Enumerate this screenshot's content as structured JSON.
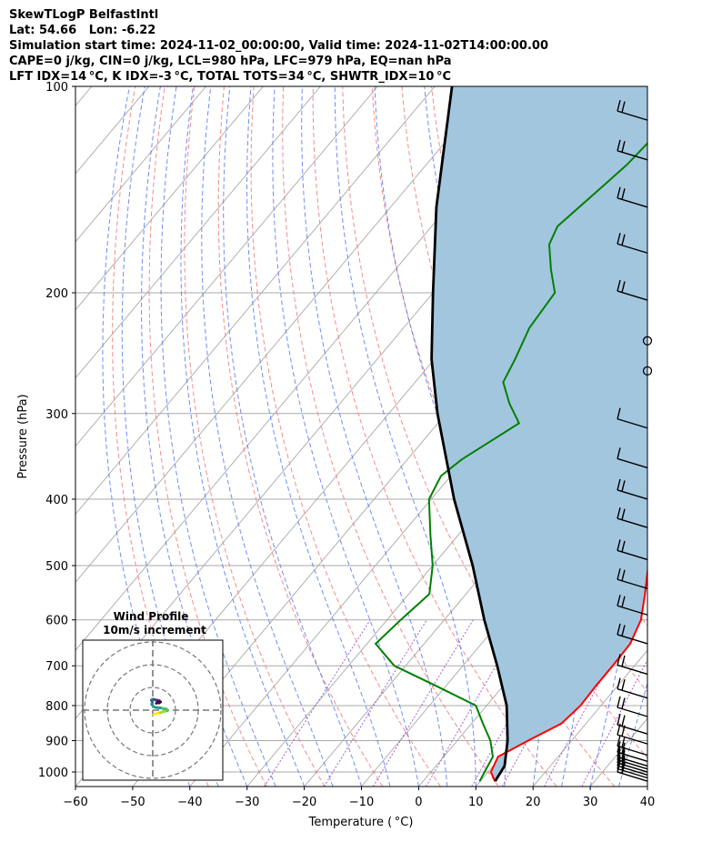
{
  "header": {
    "line1": "SkewTLogP BelfastIntl",
    "line2": "Lat: 54.66   Lon: -6.22",
    "line3": "Simulation start time: 2024-11-02_00:00:00, Valid time: 2024-11-02T14:00:00.00",
    "line4": "CAPE=0 j/kg, CIN=0 j/kg, LCL=980 hPa, LFC=979 hPa, EQ=nan hPa",
    "line5": "LFT IDX=14 °C, K IDX=-3 °C, TOTAL TOTS=34 °C, SHWTR_IDX=10 °C"
  },
  "chart_data": {
    "type": "line",
    "xlabel": "Temperature ( °C)",
    "ylabel": "Pressure (hPa)",
    "xlim": [
      -60,
      40
    ],
    "ylim_hPa": [
      1050,
      100
    ],
    "y_scale": "log",
    "x_ticks": [
      "−60",
      "−50",
      "−40",
      "−30",
      "−20",
      "−10",
      "0",
      "10",
      "20",
      "30",
      "40"
    ],
    "y_ticks": [
      "100",
      "200",
      "300",
      "400",
      "500",
      "600",
      "700",
      "800",
      "900",
      "1000"
    ],
    "colors": {
      "temperature": "#ff0000",
      "dewpoint": "#008000",
      "parcel": "#000000",
      "shade": "#a3c6df",
      "dry_adiabat": "#f08080",
      "moist_adiabat": "#4f6ff0",
      "mixing_ratio": "#9a4fc8",
      "isotherm": "#a8a8a8"
    },
    "series": [
      {
        "key": "temperature",
        "points": [
          [
            1032,
            12.6
          ],
          [
            1000,
            10.5
          ],
          [
            950,
            9.5
          ],
          [
            900,
            12.4
          ],
          [
            850,
            15.7
          ],
          [
            800,
            16.4
          ],
          [
            750,
            16.2
          ],
          [
            700,
            16.2
          ],
          [
            650,
            16.0
          ],
          [
            600,
            14.4
          ],
          [
            550,
            11.3
          ],
          [
            500,
            7.7
          ],
          [
            450,
            4.0
          ],
          [
            400,
            -0.1
          ],
          [
            350,
            -4.0
          ],
          [
            300,
            -8.0
          ],
          [
            275,
            -11.0
          ],
          [
            250,
            -14.6
          ],
          [
            225,
            -18.3
          ],
          [
            200,
            -21.5
          ],
          [
            185,
            -23.0
          ],
          [
            175,
            -24.7
          ],
          [
            165,
            -23.4
          ],
          [
            150,
            -22.7
          ],
          [
            130,
            -26.6
          ],
          [
            115,
            -30.0
          ],
          [
            100,
            -35.0
          ]
        ]
      },
      {
        "key": "dewpoint",
        "points": [
          [
            1032,
            9.9
          ],
          [
            1000,
            9.4
          ],
          [
            950,
            8.6
          ],
          [
            900,
            5.8
          ],
          [
            850,
            2.0
          ],
          [
            800,
            -1.9
          ],
          [
            750,
            -11.5
          ],
          [
            700,
            -22.0
          ],
          [
            650,
            -28.5
          ],
          [
            600,
            -27.6
          ],
          [
            550,
            -26.4
          ],
          [
            500,
            -30.0
          ],
          [
            450,
            -35.0
          ],
          [
            400,
            -40.4
          ],
          [
            370,
            -41.7
          ],
          [
            350,
            -40.5
          ],
          [
            310,
            -35.8
          ],
          [
            290,
            -40.4
          ],
          [
            270,
            -44.6
          ],
          [
            250,
            -45.9
          ],
          [
            225,
            -48.0
          ],
          [
            200,
            -48.7
          ],
          [
            185,
            -52.8
          ],
          [
            170,
            -56.8
          ],
          [
            160,
            -58.0
          ],
          [
            140,
            -56.0
          ],
          [
            130,
            -54.9
          ],
          [
            110,
            -53.9
          ],
          [
            100,
            -50.0
          ]
        ]
      },
      {
        "key": "parcel",
        "points": [
          [
            1032,
            12.6
          ],
          [
            980,
            12.0
          ],
          [
            900,
            8.8
          ],
          [
            800,
            3.5
          ],
          [
            700,
            -4.0
          ],
          [
            600,
            -13.0
          ],
          [
            500,
            -23.0
          ],
          [
            400,
            -36.0
          ],
          [
            300,
            -51.5
          ],
          [
            250,
            -60.5
          ],
          [
            200,
            -70.0
          ],
          [
            150,
            -82.0
          ],
          [
            100,
            -97.0
          ]
        ]
      }
    ],
    "wind_barbs": {
      "note": "",
      "levels_hPa": [
        1031,
        1020,
        1010,
        1000,
        990,
        980,
        965,
        945,
        910,
        880,
        830,
        780,
        720,
        650,
        590,
        540,
        490,
        440,
        400,
        360,
        315,
        260,
        235,
        205,
        175,
        150,
        128,
        112
      ],
      "barbs": [
        2,
        2,
        2,
        2,
        2,
        2,
        2,
        2,
        2,
        2,
        2,
        2,
        2,
        2,
        2,
        2,
        2,
        2,
        2,
        1,
        1,
        0,
        0,
        2,
        2,
        2,
        2,
        2
      ]
    }
  },
  "inset": {
    "title": "Wind Profile",
    "subtitle": "10m/s increment",
    "hodograph": [
      [
        0.4,
        -2.0
      ],
      [
        1.8,
        -1.4
      ],
      [
        3.4,
        -1.1
      ],
      [
        5.0,
        -0.6
      ],
      [
        6.4,
        -0.2
      ],
      [
        6.0,
        0.5
      ],
      [
        3.2,
        1.0
      ],
      [
        1.2,
        1.2
      ],
      [
        0.2,
        1.6
      ],
      [
        -0.4,
        2.6
      ],
      [
        -0.2,
        3.6
      ],
      [
        -0.6,
        4.4
      ],
      [
        0.2,
        4.8
      ],
      [
        1.6,
        4.4
      ],
      [
        2.8,
        4.2
      ],
      [
        3.4,
        3.6
      ],
      [
        2.8,
        3.2
      ],
      [
        2.0,
        3.4
      ],
      [
        1.6,
        3.0
      ]
    ]
  }
}
